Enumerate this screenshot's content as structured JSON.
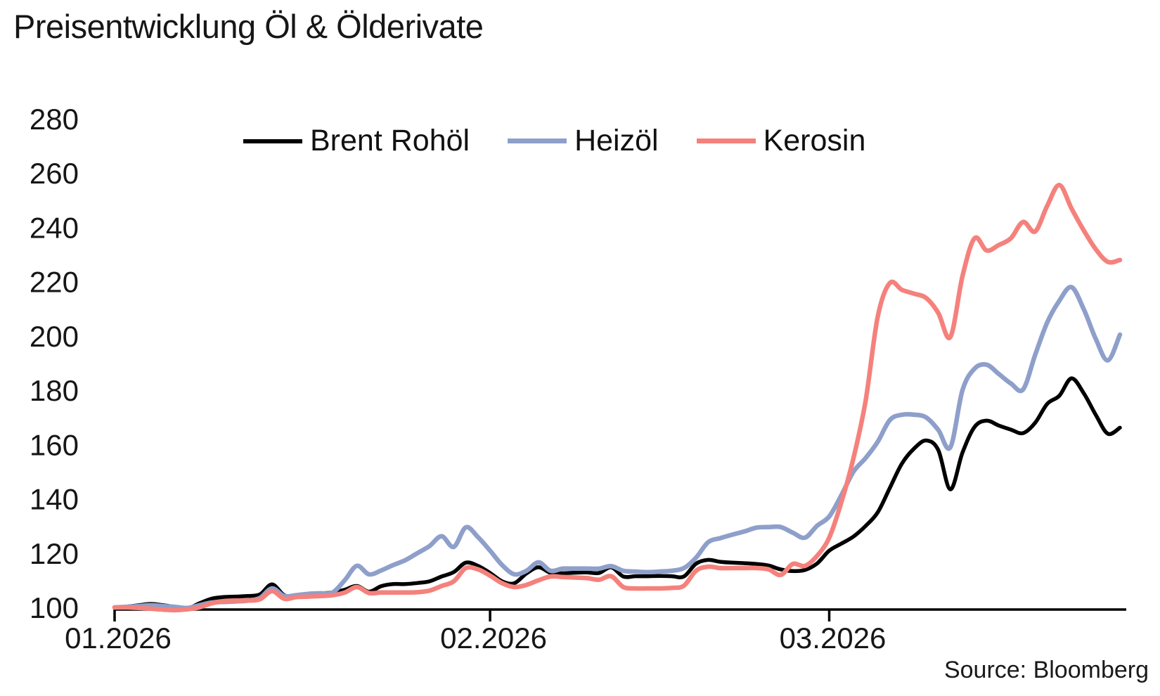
{
  "title": "Preisentwicklung Öl & Ölderivate",
  "source": "Source: Bloomberg",
  "colors": {
    "text": "#161616",
    "axis": "#000000",
    "brent": "#000000",
    "heizoel": "#8e9fca",
    "kerosin": "#f5817c"
  },
  "chart_data": {
    "type": "line",
    "title": "Preisentwicklung Öl & Ölderivate",
    "xlabel": "",
    "ylabel": "",
    "ylim": [
      100,
      280
    ],
    "y_ticks": [
      100,
      120,
      140,
      160,
      180,
      200,
      220,
      240,
      260,
      280
    ],
    "x_tick_labels": [
      "01.2026",
      "02.2026",
      "03.2026"
    ],
    "x_tick_day_indices": [
      0,
      31,
      59
    ],
    "x_sampling": "daily from 01.01.2026 to 24.03.2026, index 100 = start",
    "grid": false,
    "legend_position": "top-center",
    "series": [
      {
        "name": "Brent Rohöl",
        "color": "#000000",
        "values": [
          100,
          100.3,
          100.8,
          101.3,
          100.8,
          100.2,
          99.6,
          101.5,
          103.2,
          103.8,
          104.0,
          104.2,
          104.8,
          108.5,
          104.5,
          104.2,
          104.8,
          105.2,
          105.5,
          106.5,
          107.9,
          105.8,
          107.8,
          108.6,
          108.6,
          109.0,
          109.6,
          111.4,
          113.0,
          116.5,
          115.3,
          112.7,
          109.6,
          108.9,
          112.5,
          114.8,
          112.7,
          112.6,
          112.8,
          112.9,
          112.7,
          114.8,
          111.4,
          111.5,
          111.5,
          111.6,
          111.5,
          111.4,
          116.1,
          117.5,
          116.8,
          116.5,
          116.3,
          116.0,
          115.4,
          114.0,
          113.4,
          113.8,
          116.2,
          120.9,
          123.5,
          126.1,
          130.0,
          135.0,
          144.0,
          153.0,
          158.5,
          161.5,
          158.0,
          143.5,
          157.0,
          166.5,
          168.8,
          167.0,
          165.5,
          164.2,
          168.0,
          175.0,
          178.0,
          184.4,
          179.0,
          171.0,
          164.0,
          166.2
        ]
      },
      {
        "name": "Heizöl",
        "color": "#8e9fca",
        "values": [
          100,
          100.2,
          100.5,
          100.8,
          100.5,
          100.2,
          99.8,
          100.8,
          101.8,
          102.0,
          102.2,
          102.5,
          103.5,
          107.0,
          104.2,
          104.5,
          105.0,
          105.2,
          105.5,
          110.0,
          115.3,
          112.2,
          113.6,
          115.6,
          117.4,
          120.0,
          122.6,
          126.2,
          122.3,
          129.5,
          125.9,
          120.9,
          115.6,
          112.2,
          113.5,
          116.6,
          113.5,
          114.3,
          114.3,
          114.3,
          114.3,
          115.2,
          113.5,
          113.2,
          113.0,
          113.2,
          113.5,
          114.5,
          118.3,
          124.0,
          125.5,
          126.8,
          128.0,
          129.4,
          129.6,
          129.6,
          127.5,
          125.7,
          130.1,
          133.5,
          141.3,
          150.0,
          155.0,
          161.0,
          169.0,
          171.0,
          171.0,
          170.0,
          165.4,
          159.0,
          180.0,
          188.0,
          189.4,
          186.0,
          182.5,
          180.3,
          193.0,
          205.0,
          213.0,
          218.0,
          210.0,
          199.0,
          191.0,
          200.5
        ]
      },
      {
        "name": "Kerosin",
        "color": "#f5817c",
        "values": [
          100,
          100,
          99.8,
          99.5,
          99.2,
          99.0,
          99.3,
          100.0,
          101.5,
          102.3,
          102.5,
          102.5,
          103.0,
          106.0,
          103.2,
          103.8,
          104.0,
          104.2,
          104.5,
          105.5,
          107.5,
          105.3,
          105.5,
          105.5,
          105.5,
          105.6,
          106.2,
          107.9,
          109.6,
          114.5,
          114.0,
          111.7,
          108.9,
          107.5,
          108.3,
          110.0,
          111.4,
          111.2,
          111.0,
          110.8,
          110.2,
          111.5,
          107.5,
          107.0,
          107.0,
          107.0,
          107.2,
          108.0,
          113.5,
          115.0,
          114.5,
          114.5,
          114.5,
          114.5,
          114.0,
          112.0,
          116.0,
          115.3,
          119.0,
          125.7,
          138.7,
          155.0,
          176.0,
          207.0,
          219.5,
          217.0,
          215.6,
          214.0,
          208.5,
          199.6,
          222.0,
          236.0,
          231.5,
          233.5,
          236.0,
          242.0,
          238.5,
          248.0,
          255.6,
          247.0,
          239.0,
          232.0,
          227.3,
          228.0
        ]
      }
    ]
  }
}
